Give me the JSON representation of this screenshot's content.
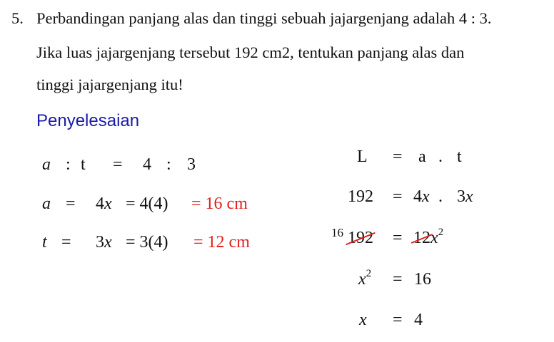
{
  "question": {
    "number": "5.",
    "line1": "Perbandingan panjang alas dan tinggi sebuah jajargenjang adalah 4 : 3.",
    "line2": "Jika luas jajargenjang tersebut 192 cm2, tentukan panjang alas dan",
    "line3": "tinggi jajargenjang itu!"
  },
  "solution_heading": "Penyelesaian",
  "colors": {
    "heading": "#1a1aa8",
    "red": "#e0201c"
  },
  "left": {
    "row1": {
      "a": "a",
      "colon": ":",
      "t": "t",
      "eq": "=",
      "v1": "4",
      "colon2": ":",
      "v2": "3"
    },
    "row2": {
      "var": "a",
      "eq": "=",
      "coef": "4",
      "x": "x",
      "eq2": "= 4(4)",
      "result": "= 16 cm"
    },
    "row3": {
      "var": "t",
      "eq": "=",
      "coef": "3",
      "x": "x",
      "eq2": "= 3(4)",
      "result": "= 12 cm"
    }
  },
  "right": {
    "row1": {
      "lhs": "L",
      "eq": "=",
      "a": "a",
      "dot": ".",
      "t": "t"
    },
    "row2": {
      "lhs": "192",
      "eq": "=",
      "coef1": "4",
      "x1": "x",
      "dot": ".",
      "coef2": "3",
      "x2": "x"
    },
    "row3": {
      "note": "16",
      "lhs": "192",
      "eq": "=",
      "coef": "12",
      "x": "x",
      "exp": "2"
    },
    "row4": {
      "x": "x",
      "exp": "2",
      "eq": "=",
      "rhs": "16"
    },
    "row5": {
      "x": "x",
      "eq": "=",
      "rhs": "4"
    }
  }
}
